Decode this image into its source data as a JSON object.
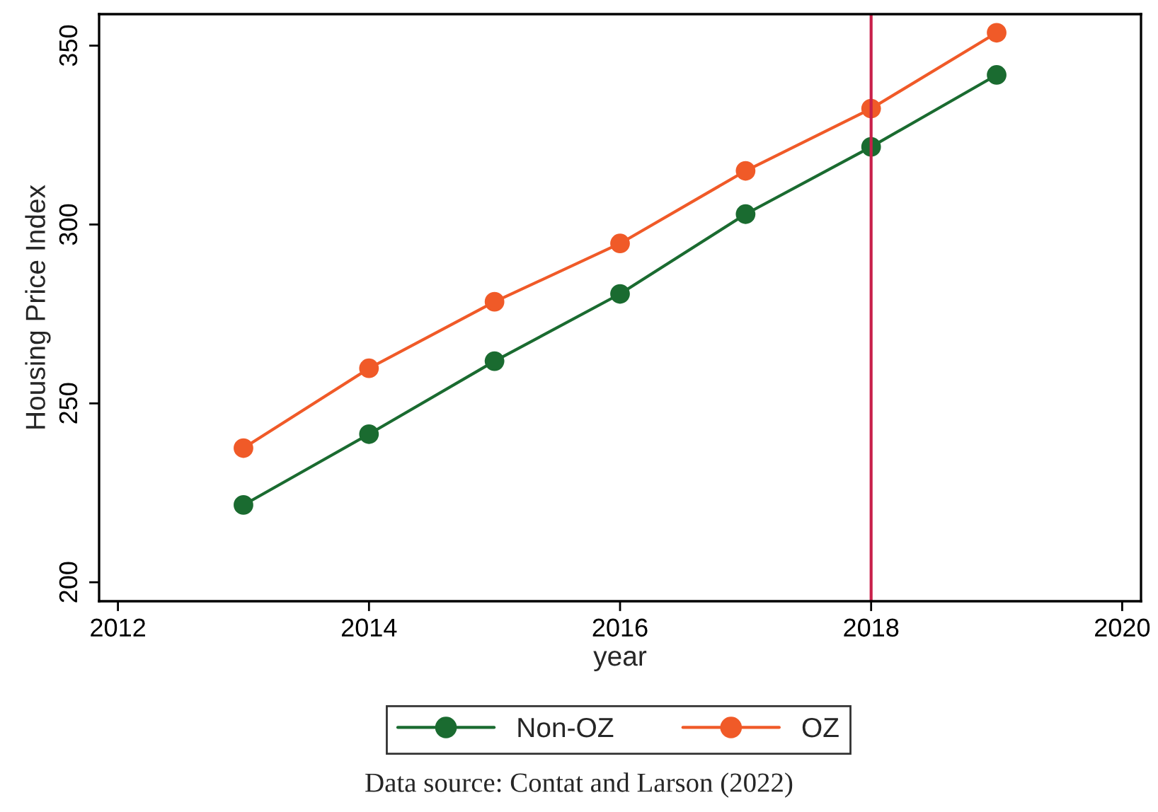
{
  "chart_data": {
    "type": "line",
    "xlabel": "year",
    "ylabel": "Housing Price Index",
    "x": [
      2013,
      2014,
      2015,
      2016,
      2017,
      2018,
      2019
    ],
    "series": [
      {
        "name": "Non-OZ",
        "color": "#1a6b30",
        "values": [
          221.6,
          241.4,
          261.8,
          280.6,
          302.9,
          321.7,
          341.8
        ]
      },
      {
        "name": "OZ",
        "color": "#f05a28",
        "values": [
          237.5,
          259.8,
          278.4,
          294.7,
          315.0,
          332.4,
          353.6
        ]
      }
    ],
    "xlim": [
      2011.85,
      2020.15
    ],
    "xticks": [
      2012,
      2014,
      2016,
      2018,
      2020
    ],
    "ylim": [
      194.7,
      358.8
    ],
    "yticks": [
      200,
      250,
      300,
      350
    ],
    "ref_lines": [
      {
        "axis": "x",
        "value": 2018,
        "color": "#c8204a"
      }
    ],
    "annotations": [
      "Data source: Contat and Larson (2022)"
    ],
    "marker": "circle",
    "line_style": "solid",
    "grid": false,
    "legend": "bottom"
  }
}
